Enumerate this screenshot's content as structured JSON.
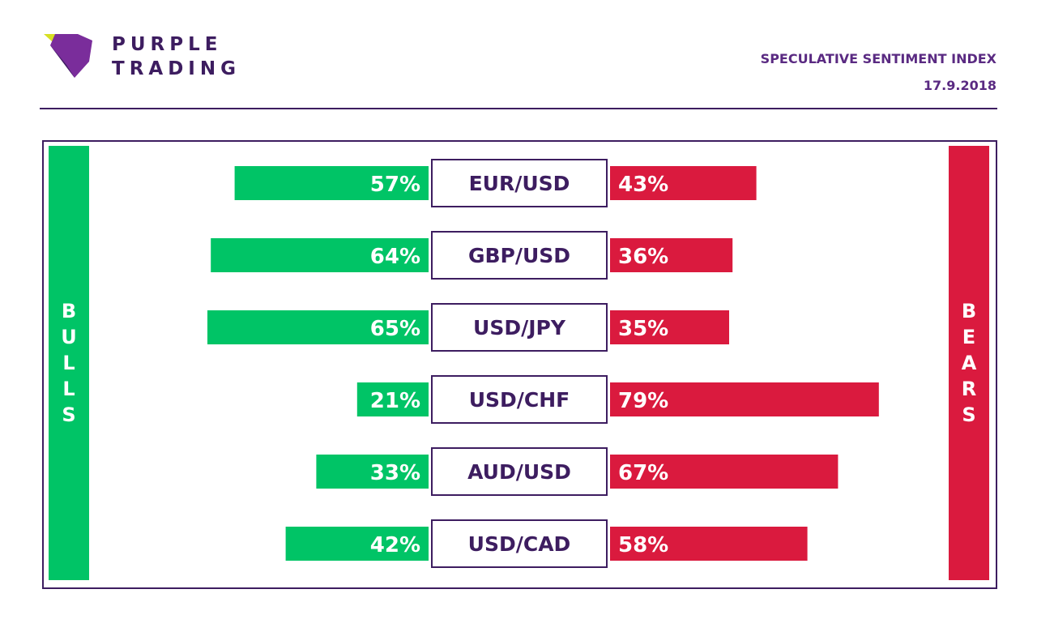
{
  "brand": {
    "line1": "PURPLE",
    "line2": "TRADING",
    "colors": {
      "purple": "#3d1d60",
      "accent_purple": "#7a2d9b",
      "lime": "#d7df23"
    }
  },
  "header": {
    "title": "SPECULATIVE SENTIMENT INDEX",
    "date": "17.9.2018"
  },
  "sides": {
    "bulls_letters": [
      "B",
      "U",
      "L",
      "L",
      "S"
    ],
    "bears_letters": [
      "B",
      "E",
      "A",
      "R",
      "S"
    ],
    "bulls_color": "#00c466",
    "bears_color": "#da1a3e"
  },
  "chart_data": {
    "type": "bar",
    "categories": [
      "EUR/USD",
      "GBP/USD",
      "USD/JPY",
      "USD/CHF",
      "AUD/USD",
      "USD/CAD"
    ],
    "series": [
      {
        "name": "BULLS",
        "values": [
          57,
          64,
          65,
          21,
          33,
          42
        ],
        "labels": [
          "57%",
          "64%",
          "65%",
          "21%",
          "33%",
          "42%"
        ],
        "color": "#00c466"
      },
      {
        "name": "BEARS",
        "values": [
          43,
          36,
          35,
          79,
          67,
          58
        ],
        "labels": [
          "43%",
          "36%",
          "35%",
          "79%",
          "67%",
          "58%"
        ],
        "color": "#da1a3e"
      }
    ],
    "unit": "%",
    "ylim": [
      0,
      100
    ]
  }
}
